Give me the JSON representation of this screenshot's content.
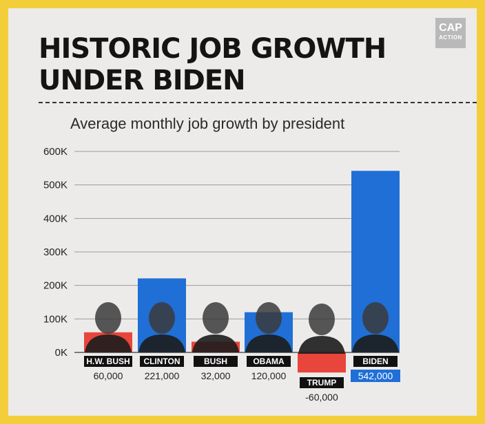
{
  "header": {
    "title": "HISTORIC JOB GROWTH\nUNDER BIDEN",
    "logo_line1": "CAP",
    "logo_line2": "ACTION"
  },
  "chart_data": {
    "type": "bar",
    "title": "Average monthly job growth by president",
    "categories": [
      "H.W. BUSH",
      "CLINTON",
      "BUSH",
      "OBAMA",
      "TRUMP",
      "BIDEN"
    ],
    "values": [
      60000,
      221000,
      32000,
      120000,
      -60000,
      542000
    ],
    "value_labels": [
      "60,000",
      "221,000",
      "32,000",
      "120,000",
      "-60,000",
      "542,000"
    ],
    "bar_colors": [
      "#e8453c",
      "#1f6fd6",
      "#e8453c",
      "#1f6fd6",
      "#e8453c",
      "#1f6fd6"
    ],
    "highlight": "BIDEN",
    "highlight_color": "#1f6fd6",
    "y_ticks": [
      0,
      100000,
      200000,
      300000,
      400000,
      500000,
      600000
    ],
    "y_tick_labels": [
      "0K",
      "100K",
      "200K",
      "300K",
      "400K",
      "500K",
      "600K"
    ],
    "ylim": [
      0,
      600000
    ],
    "grid": true,
    "xlabel": "",
    "ylabel": ""
  }
}
